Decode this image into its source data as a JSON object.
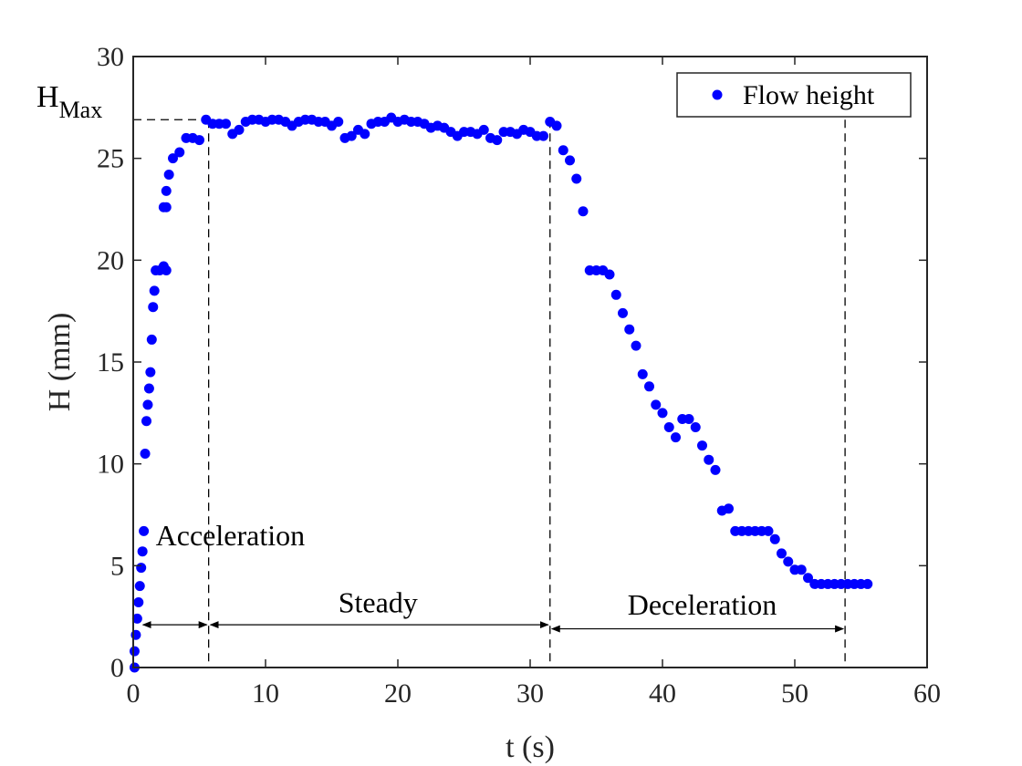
{
  "chart_data": {
    "type": "scatter",
    "xlabel": "t (s)",
    "ylabel": "H (mm)",
    "xlim": [
      0,
      60
    ],
    "ylim": [
      0,
      30
    ],
    "x_ticks": [
      0,
      10,
      20,
      30,
      40,
      50,
      60
    ],
    "y_ticks": [
      0,
      5,
      10,
      15,
      20,
      25,
      30
    ],
    "grid": false,
    "legend": {
      "position": "top-right",
      "entries": [
        "Flow height"
      ]
    },
    "marker_color": "#0000ff",
    "series": [
      {
        "name": "Flow height",
        "points": [
          [
            0.1,
            0.0
          ],
          [
            0.1,
            0.8
          ],
          [
            0.2,
            1.6
          ],
          [
            0.3,
            2.4
          ],
          [
            0.4,
            3.2
          ],
          [
            0.5,
            4.0
          ],
          [
            0.6,
            4.9
          ],
          [
            0.7,
            5.7
          ],
          [
            0.8,
            6.7
          ],
          [
            0.9,
            10.5
          ],
          [
            1.0,
            12.1
          ],
          [
            1.1,
            12.9
          ],
          [
            1.2,
            13.7
          ],
          [
            1.3,
            14.5
          ],
          [
            1.4,
            16.1
          ],
          [
            1.5,
            17.7
          ],
          [
            1.6,
            18.5
          ],
          [
            1.7,
            19.5
          ],
          [
            2.0,
            19.5
          ],
          [
            2.3,
            19.7
          ],
          [
            2.5,
            19.5
          ],
          [
            2.3,
            22.6
          ],
          [
            2.5,
            22.6
          ],
          [
            2.5,
            23.4
          ],
          [
            2.7,
            24.2
          ],
          [
            3.0,
            25.0
          ],
          [
            3.5,
            25.3
          ],
          [
            4.0,
            26.0
          ],
          [
            4.5,
            26.0
          ],
          [
            5.0,
            25.9
          ],
          [
            5.5,
            26.9
          ],
          [
            6.0,
            26.7
          ],
          [
            6.5,
            26.7
          ],
          [
            7.0,
            26.7
          ],
          [
            7.5,
            26.2
          ],
          [
            8.0,
            26.4
          ],
          [
            8.5,
            26.8
          ],
          [
            9.0,
            26.9
          ],
          [
            9.5,
            26.9
          ],
          [
            10.0,
            26.8
          ],
          [
            10.5,
            26.9
          ],
          [
            11.0,
            26.9
          ],
          [
            11.5,
            26.8
          ],
          [
            12.0,
            26.6
          ],
          [
            12.5,
            26.8
          ],
          [
            13.0,
            26.9
          ],
          [
            13.5,
            26.9
          ],
          [
            14.0,
            26.8
          ],
          [
            14.5,
            26.8
          ],
          [
            15.0,
            26.6
          ],
          [
            15.5,
            26.8
          ],
          [
            16.0,
            26.0
          ],
          [
            16.5,
            26.1
          ],
          [
            17.0,
            26.4
          ],
          [
            17.5,
            26.2
          ],
          [
            18.0,
            26.7
          ],
          [
            18.5,
            26.8
          ],
          [
            19.0,
            26.8
          ],
          [
            19.5,
            27.0
          ],
          [
            20.0,
            26.8
          ],
          [
            20.5,
            26.9
          ],
          [
            21.0,
            26.8
          ],
          [
            21.5,
            26.8
          ],
          [
            22.0,
            26.7
          ],
          [
            22.5,
            26.5
          ],
          [
            23.0,
            26.6
          ],
          [
            23.5,
            26.5
          ],
          [
            24.0,
            26.3
          ],
          [
            24.5,
            26.1
          ],
          [
            25.0,
            26.3
          ],
          [
            25.5,
            26.3
          ],
          [
            26.0,
            26.2
          ],
          [
            26.5,
            26.4
          ],
          [
            27.0,
            26.0
          ],
          [
            27.5,
            25.9
          ],
          [
            28.0,
            26.3
          ],
          [
            28.5,
            26.3
          ],
          [
            29.0,
            26.2
          ],
          [
            29.5,
            26.4
          ],
          [
            30.0,
            26.3
          ],
          [
            30.5,
            26.1
          ],
          [
            31.0,
            26.1
          ],
          [
            31.5,
            26.8
          ],
          [
            32.0,
            26.6
          ],
          [
            32.5,
            25.4
          ],
          [
            33.0,
            24.9
          ],
          [
            33.5,
            24.0
          ],
          [
            34.0,
            22.4
          ],
          [
            34.5,
            19.5
          ],
          [
            35.0,
            19.5
          ],
          [
            35.5,
            19.5
          ],
          [
            36.0,
            19.3
          ],
          [
            36.5,
            18.3
          ],
          [
            37.0,
            17.4
          ],
          [
            37.5,
            16.6
          ],
          [
            38.0,
            15.8
          ],
          [
            38.5,
            14.4
          ],
          [
            39.0,
            13.8
          ],
          [
            39.5,
            12.9
          ],
          [
            40.0,
            12.5
          ],
          [
            40.5,
            11.8
          ],
          [
            41.0,
            11.3
          ],
          [
            41.5,
            12.2
          ],
          [
            42.0,
            12.2
          ],
          [
            42.5,
            11.8
          ],
          [
            43.0,
            10.9
          ],
          [
            43.5,
            10.2
          ],
          [
            44.0,
            9.7
          ],
          [
            44.5,
            7.7
          ],
          [
            45.0,
            7.8
          ],
          [
            45.5,
            6.7
          ],
          [
            46.0,
            6.7
          ],
          [
            46.5,
            6.7
          ],
          [
            47.0,
            6.7
          ],
          [
            47.5,
            6.7
          ],
          [
            48.0,
            6.7
          ],
          [
            48.5,
            6.3
          ],
          [
            49.0,
            5.6
          ],
          [
            49.5,
            5.2
          ],
          [
            50.0,
            4.8
          ],
          [
            50.5,
            4.8
          ],
          [
            51.0,
            4.4
          ],
          [
            51.5,
            4.1
          ],
          [
            52.0,
            4.1
          ],
          [
            52.5,
            4.1
          ],
          [
            53.0,
            4.1
          ],
          [
            53.5,
            4.1
          ],
          [
            54.0,
            4.1
          ],
          [
            54.5,
            4.1
          ],
          [
            55.0,
            4.1
          ],
          [
            55.5,
            4.1
          ]
        ]
      }
    ],
    "reference_lines": {
      "h_max_value": 26.9,
      "phase_boundaries_x": [
        5.7,
        31.5,
        53.8
      ]
    },
    "annotations": {
      "h_max_label": "H",
      "h_max_subscript": "Max",
      "phases": [
        {
          "label": "Acceleration",
          "from": 0.6,
          "to": 5.7,
          "label_x": 1.7,
          "label_y": 6.5,
          "arrow_y": 2.1
        },
        {
          "label": "Steady",
          "from": 5.7,
          "to": 31.5,
          "label_x": 18.5,
          "label_y": 3.2,
          "arrow_y": 2.1
        },
        {
          "label": "Deceleration",
          "from": 31.5,
          "to": 53.8,
          "label_x": 43.0,
          "label_y": 3.1,
          "arrow_y": 1.9
        }
      ]
    }
  }
}
